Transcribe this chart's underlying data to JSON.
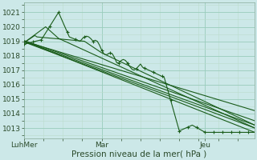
{
  "xlabel": "Pression niveau de la mer( hPa )",
  "bg_color": "#cce8e8",
  "grid_major_color": "#99ccbb",
  "grid_minor_color": "#bbddcc",
  "line_color": "#1a5c1a",
  "ylim": [
    1012.3,
    1021.7
  ],
  "yticks": [
    1013,
    1014,
    1015,
    1016,
    1017,
    1018,
    1019,
    1020,
    1021
  ],
  "xtick_labels": [
    "LuhMer",
    "Mar",
    "Jeu"
  ],
  "xtick_positions": [
    0,
    36,
    84
  ],
  "total_points": 108,
  "xlabel_fontsize": 7.5,
  "tick_fontsize": 6.5
}
